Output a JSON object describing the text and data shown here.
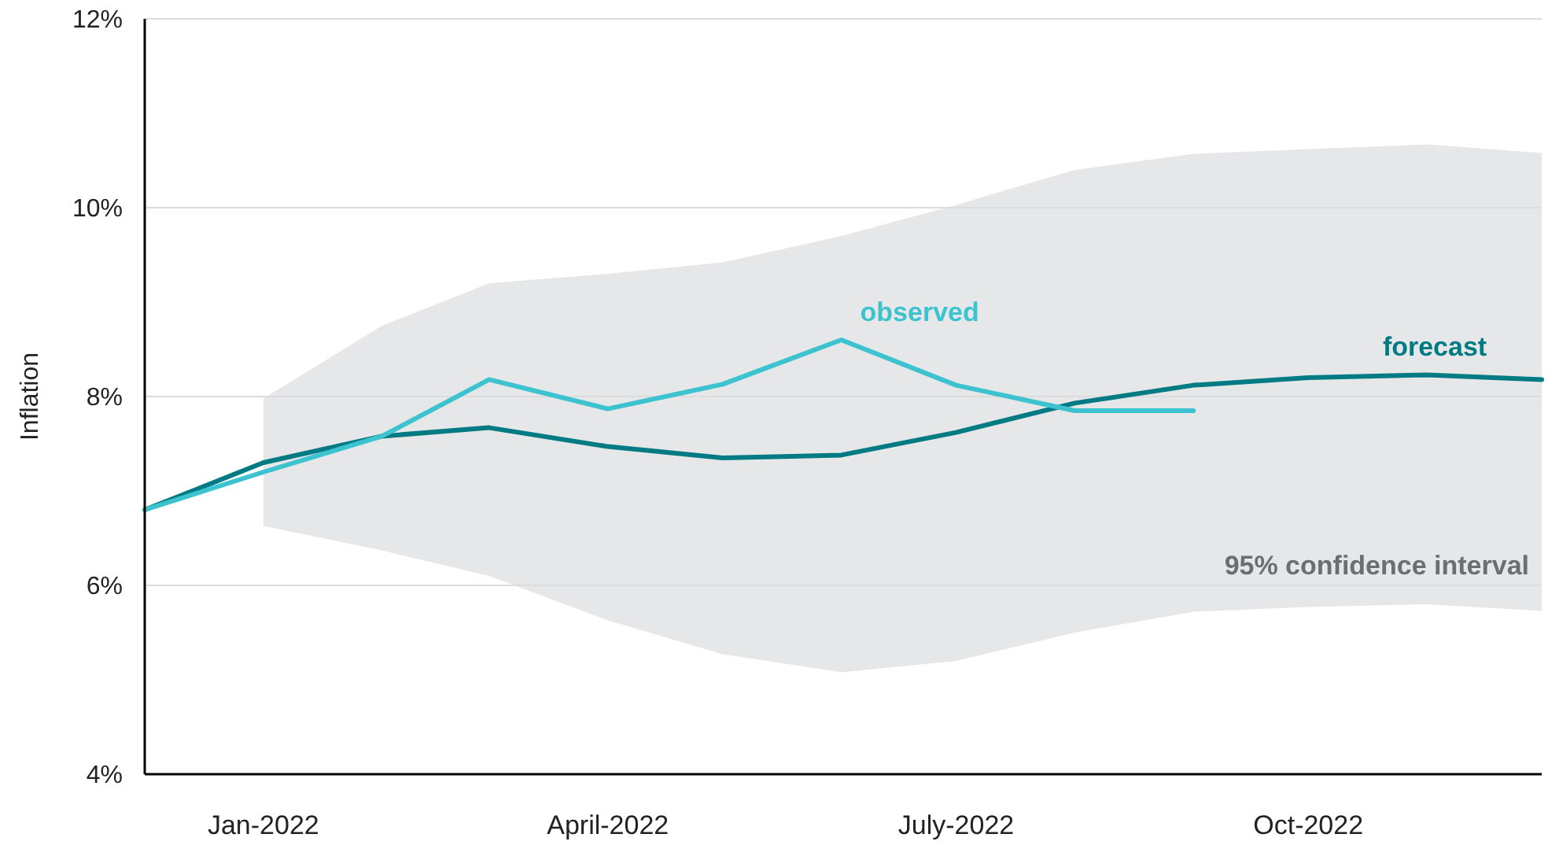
{
  "chart_data": {
    "type": "line",
    "ylabel": "Inflation",
    "x": [
      "2021-12",
      "2022-01",
      "2022-02",
      "2022-03",
      "2022-04",
      "2022-05",
      "2022-06",
      "2022-07",
      "2022-08",
      "2022-09",
      "2022-10",
      "2022-11",
      "2022-12"
    ],
    "xlim": [
      "2021-12",
      "2022-12"
    ],
    "xticks": [
      {
        "value": "2022-01",
        "label": "Jan-2022"
      },
      {
        "value": "2022-04",
        "label": "April-2022"
      },
      {
        "value": "2022-07",
        "label": "July-2022"
      },
      {
        "value": "2022-10",
        "label": "Oct-2022"
      }
    ],
    "ylim": [
      4,
      12
    ],
    "yticks": [
      {
        "value": 4,
        "label": "4%"
      },
      {
        "value": 6,
        "label": "6%"
      },
      {
        "value": 8,
        "label": "8%"
      },
      {
        "value": 10,
        "label": "10%"
      },
      {
        "value": 12,
        "label": "12%"
      }
    ],
    "series": [
      {
        "name": "forecast",
        "color": "#007b84",
        "values": [
          6.8,
          7.3,
          7.58,
          7.67,
          7.47,
          7.35,
          7.38,
          7.62,
          7.93,
          8.12,
          8.2,
          8.23,
          8.18
        ],
        "lower": [
          null,
          6.63,
          6.37,
          6.1,
          5.63,
          5.27,
          5.08,
          5.2,
          5.5,
          5.72,
          5.77,
          5.8,
          5.73
        ],
        "upper": [
          null,
          7.98,
          8.75,
          9.2,
          9.3,
          9.42,
          9.7,
          10.03,
          10.4,
          10.57,
          10.62,
          10.67,
          10.58
        ]
      },
      {
        "name": "observed",
        "color": "#3cc3cf",
        "values": [
          6.8,
          7.2,
          7.58,
          8.18,
          7.87,
          8.13,
          8.6,
          8.12,
          7.85,
          7.85,
          null,
          null,
          null
        ]
      }
    ],
    "annotations": [
      "95% confidence interval"
    ],
    "grid": "y",
    "marker": "none",
    "line_style": "solid"
  }
}
